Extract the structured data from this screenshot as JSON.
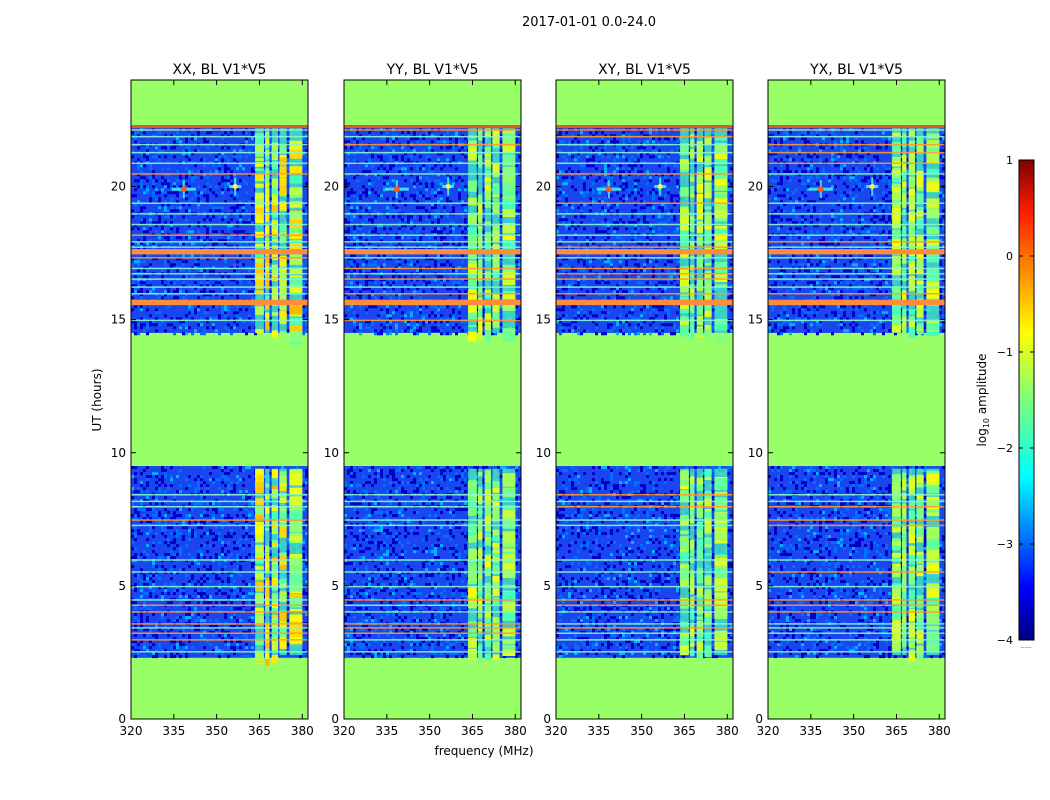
{
  "figure": {
    "suptitle": "2017-01-01 0.0-24.0",
    "xlabel": "frequency (MHz)",
    "ylabel": "UT (hours)",
    "colorbar_label_main": "log",
    "colorbar_label_sub": "10",
    "colorbar_label_rest": " amplitude"
  },
  "chart_data": {
    "type": "heatmap",
    "title": "2017-01-01 0.0-24.0",
    "xlabel": "frequency (MHz)",
    "ylabel": "UT (hours)",
    "xlim": [
      320,
      382
    ],
    "ylim": [
      0,
      24
    ],
    "xticks": [
      320,
      335,
      350,
      365,
      380
    ],
    "yticks": [
      0,
      5,
      10,
      15,
      20
    ],
    "panels": [
      {
        "title": "XX, BL V1*V5",
        "pol": "XX",
        "strong_rfi": true
      },
      {
        "title": "YY, BL V1*V5",
        "pol": "YY",
        "strong_rfi": false
      },
      {
        "title": "XY, BL V1*V5",
        "pol": "XY",
        "strong_rfi": false
      },
      {
        "title": "YX, BL V1*V5",
        "pol": "YX",
        "strong_rfi": false
      }
    ],
    "flagged_time_ranges_hours": [
      [
        0,
        2.3
      ],
      [
        9.5,
        14.5
      ],
      [
        22.3,
        24
      ]
    ],
    "rfi_band_mhz": [
      363.5,
      380
    ],
    "point_sources": [
      {
        "freq_mhz": 338.5,
        "time_h": 19.9
      },
      {
        "freq_mhz": 356.5,
        "time_h": 20.0
      }
    ],
    "colorbar": {
      "label": "log10 amplitude",
      "min": -4,
      "max": 1,
      "ticks": [
        1,
        0,
        -1,
        -2,
        -3,
        -4
      ],
      "tick_labels": [
        "1",
        "0",
        "−1",
        "−2",
        "−3",
        "−4"
      ],
      "colormap": "jet",
      "extra_label": "......"
    }
  }
}
